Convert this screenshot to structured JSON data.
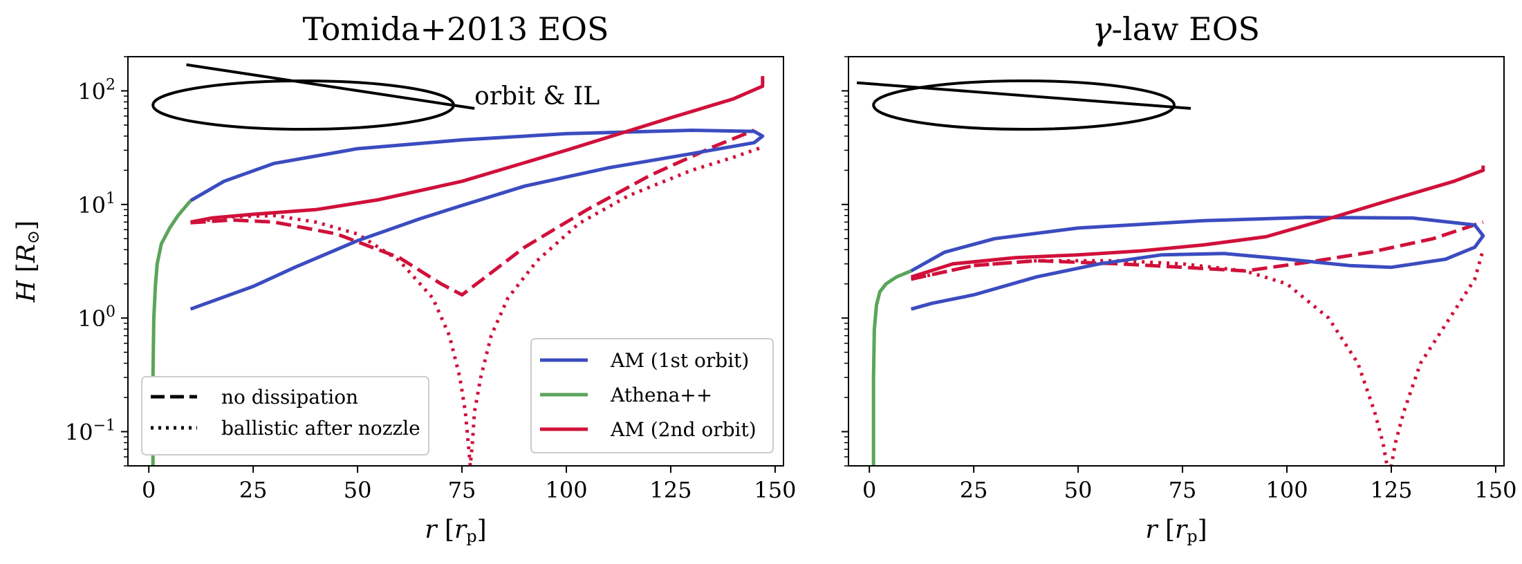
{
  "chart_data": [
    {
      "type": "line",
      "title": "Tomida+2013 EOS",
      "xlabel": "r [r_p]",
      "ylabel": "H [R_⊙]",
      "xlim": [
        -5,
        152
      ],
      "ylim": [
        0.05,
        200
      ],
      "yscale": "log",
      "xticks": [
        0,
        25,
        50,
        75,
        100,
        125,
        150
      ],
      "yticks": [
        {
          "value": 0.1,
          "base": "10",
          "exp": "−1"
        },
        {
          "value": 1,
          "base": "10",
          "exp": "0"
        },
        {
          "value": 10,
          "base": "10",
          "exp": "1"
        },
        {
          "value": 100,
          "base": "10",
          "exp": "2"
        }
      ],
      "annotation": {
        "text": "orbit & IL",
        "x": 78,
        "y": 90
      },
      "series": [
        {
          "name": "AM (1st orbit)",
          "color": "#3b4cc0",
          "style": "solid",
          "points": [
            [
              10,
              1.2
            ],
            [
              15,
              1.4
            ],
            [
              25,
              1.9
            ],
            [
              35,
              2.8
            ],
            [
              50,
              4.8
            ],
            [
              65,
              7.5
            ],
            [
              75,
              9.8
            ],
            [
              90,
              14.5
            ],
            [
              110,
              21
            ],
            [
              130,
              28
            ],
            [
              145,
              35
            ],
            [
              147,
              40
            ],
            [
              145,
              44
            ],
            [
              130,
              45
            ],
            [
              100,
              42
            ],
            [
              75,
              37
            ],
            [
              50,
              31
            ],
            [
              30,
              23
            ],
            [
              18,
              16
            ],
            [
              10,
              10.8
            ]
          ]
        },
        {
          "name": "Athena++",
          "color": "#5ba55a",
          "style": "solid",
          "points": [
            [
              1,
              0.05
            ],
            [
              1,
              0.3
            ],
            [
              1.2,
              1
            ],
            [
              1.6,
              2
            ],
            [
              2,
              3
            ],
            [
              3,
              4.5
            ],
            [
              5,
              6.2
            ],
            [
              7,
              8
            ],
            [
              10,
              10.8
            ]
          ]
        },
        {
          "name": "AM (2nd orbit)",
          "color": "#d0103a",
          "style": "solid",
          "points": [
            [
              10,
              7
            ],
            [
              15,
              7.6
            ],
            [
              25,
              8.2
            ],
            [
              40,
              9
            ],
            [
              55,
              11
            ],
            [
              75,
              16
            ],
            [
              100,
              30
            ],
            [
              125,
              58
            ],
            [
              140,
              85
            ],
            [
              147,
              110
            ],
            [
              147,
              135
            ]
          ]
        },
        {
          "name": "no dissipation",
          "color": "#d0103a",
          "style": "dashed",
          "points": [
            [
              10,
              6.9
            ],
            [
              20,
              7.3
            ],
            [
              30,
              7
            ],
            [
              45,
              5.5
            ],
            [
              60,
              3.4
            ],
            [
              70,
              2
            ],
            [
              75,
              1.6
            ],
            [
              80,
              2.2
            ],
            [
              90,
              4.2
            ],
            [
              105,
              9
            ],
            [
              120,
              18
            ],
            [
              135,
              32
            ],
            [
              145,
              45
            ]
          ]
        },
        {
          "name": "ballistic after nozzle",
          "color": "#d0103a",
          "style": "dotted",
          "points": [
            [
              10,
              6.9
            ],
            [
              20,
              7.8
            ],
            [
              30,
              8
            ],
            [
              40,
              7
            ],
            [
              50,
              5.5
            ],
            [
              60,
              3.2
            ],
            [
              68,
              1.5
            ],
            [
              72,
              0.7
            ],
            [
              74.5,
              0.3
            ],
            [
              75.8,
              0.15
            ],
            [
              76.5,
              0.08
            ],
            [
              77,
              0.05
            ],
            [
              77.5,
              0.08
            ],
            [
              78,
              0.15
            ],
            [
              79.5,
              0.3
            ],
            [
              82,
              0.7
            ],
            [
              86,
              1.5
            ],
            [
              93,
              3.2
            ],
            [
              103,
              6.8
            ],
            [
              115,
              12
            ],
            [
              130,
              20
            ],
            [
              140,
              26
            ],
            [
              147,
              32
            ]
          ]
        }
      ],
      "orbit_lines": [
        {
          "name": "orbit ellipse",
          "kind": "ellipse",
          "cx": 37,
          "cy": 75,
          "rx": 36,
          "ry_up": 120,
          "ry_down": 45
        },
        {
          "name": "IL line",
          "kind": "line",
          "points": [
            [
              9,
              170
            ],
            [
              78,
              70
            ]
          ]
        }
      ],
      "legends": [
        {
          "position": "lower-right",
          "entries": [
            {
              "label": "AM (1st orbit)",
              "color": "#3b4cc0",
              "style": "solid"
            },
            {
              "label": "Athena++",
              "color": "#5ba55a",
              "style": "solid"
            },
            {
              "label": "AM (2nd orbit)",
              "color": "#d0103a",
              "style": "solid"
            }
          ]
        },
        {
          "position": "lower-left",
          "entries": [
            {
              "label": "no dissipation",
              "color": "#000000",
              "style": "dashed"
            },
            {
              "label": "ballistic after nozzle",
              "color": "#000000",
              "style": "dotted"
            }
          ]
        }
      ]
    },
    {
      "type": "line",
      "title": "γ-law EOS",
      "xlabel": "r [r_p]",
      "xlim": [
        -5,
        152
      ],
      "ylim": [
        0.05,
        200
      ],
      "yscale": "log",
      "xticks": [
        0,
        25,
        50,
        75,
        100,
        125,
        150
      ],
      "series": [
        {
          "name": "AM (1st orbit)",
          "color": "#3b4cc0",
          "style": "solid",
          "points": [
            [
              10,
              1.2
            ],
            [
              15,
              1.35
            ],
            [
              25,
              1.6
            ],
            [
              40,
              2.3
            ],
            [
              55,
              3
            ],
            [
              70,
              3.6
            ],
            [
              85,
              3.7
            ],
            [
              100,
              3.3
            ],
            [
              115,
              2.9
            ],
            [
              125,
              2.8
            ],
            [
              138,
              3.3
            ],
            [
              145,
              4.2
            ],
            [
              147,
              5.3
            ],
            [
              145,
              6.6
            ],
            [
              130,
              7.6
            ],
            [
              105,
              7.7
            ],
            [
              80,
              7.2
            ],
            [
              50,
              6.2
            ],
            [
              30,
              5
            ],
            [
              18,
              3.8
            ],
            [
              10,
              2.6
            ]
          ]
        },
        {
          "name": "Athena++",
          "color": "#5ba55a",
          "style": "solid",
          "points": [
            [
              1,
              0.05
            ],
            [
              1,
              0.3
            ],
            [
              1.2,
              0.8
            ],
            [
              1.7,
              1.3
            ],
            [
              2.5,
              1.7
            ],
            [
              4,
              2
            ],
            [
              6.5,
              2.3
            ],
            [
              10,
              2.6
            ]
          ]
        },
        {
          "name": "AM (2nd orbit)",
          "color": "#d0103a",
          "style": "solid",
          "points": [
            [
              10,
              2.3
            ],
            [
              20,
              3
            ],
            [
              35,
              3.4
            ],
            [
              50,
              3.6
            ],
            [
              65,
              3.9
            ],
            [
              80,
              4.4
            ],
            [
              95,
              5.2
            ],
            [
              110,
              7.5
            ],
            [
              125,
              11
            ],
            [
              140,
              16
            ],
            [
              147,
              20
            ],
            [
              147,
              22
            ]
          ]
        },
        {
          "name": "no dissipation",
          "color": "#d0103a",
          "style": "dashed",
          "points": [
            [
              10,
              2.2
            ],
            [
              25,
              2.9
            ],
            [
              40,
              3.2
            ],
            [
              60,
              3
            ],
            [
              75,
              2.8
            ],
            [
              90,
              2.6
            ],
            [
              105,
              3.1
            ],
            [
              120,
              3.8
            ],
            [
              135,
              5
            ],
            [
              147,
              7
            ]
          ]
        },
        {
          "name": "ballistic after nozzle",
          "color": "#d0103a",
          "style": "dotted",
          "points": [
            [
              10,
              2.2
            ],
            [
              25,
              2.9
            ],
            [
              40,
              3.2
            ],
            [
              60,
              3.2
            ],
            [
              75,
              3
            ],
            [
              90,
              2.6
            ],
            [
              100,
              2
            ],
            [
              110,
              1
            ],
            [
              117,
              0.4
            ],
            [
              121,
              0.15
            ],
            [
              123,
              0.08
            ],
            [
              124,
              0.05
            ],
            [
              125,
              0.05
            ],
            [
              126,
              0.08
            ],
            [
              128,
              0.15
            ],
            [
              132,
              0.4
            ],
            [
              139,
              1
            ],
            [
              145,
              2.2
            ],
            [
              147,
              4
            ]
          ]
        }
      ],
      "orbit_lines": [
        {
          "name": "orbit ellipse",
          "kind": "ellipse",
          "cx": 37,
          "cy": 75,
          "rx": 36,
          "ry_up": 120,
          "ry_down": 45
        },
        {
          "name": "IL line",
          "kind": "line",
          "points": [
            [
              -3,
              118
            ],
            [
              77,
              70
            ]
          ]
        }
      ]
    }
  ]
}
